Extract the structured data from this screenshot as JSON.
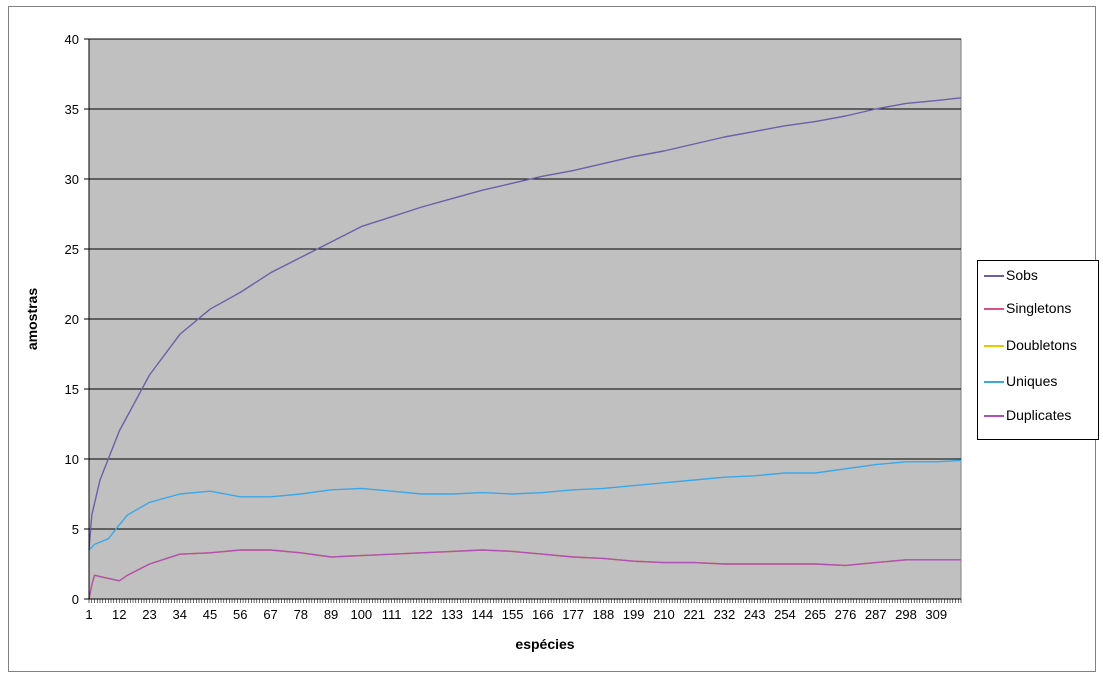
{
  "chart_data": {
    "type": "line",
    "title": "",
    "xlabel": "espécies",
    "ylabel": "amostras",
    "ylim": [
      0,
      40
    ],
    "yticks": [
      "0",
      "5",
      "10",
      "15",
      "20",
      "25",
      "30",
      "35",
      "40"
    ],
    "xlim": [
      1,
      318
    ],
    "xtick_labels": [
      "1",
      "12",
      "23",
      "34",
      "45",
      "56",
      "67",
      "78",
      "89",
      "100",
      "111",
      "122",
      "133",
      "144",
      "155",
      "166",
      "177",
      "188",
      "199",
      "210",
      "221",
      "232",
      "243",
      "254",
      "265",
      "276",
      "287",
      "298",
      "309"
    ],
    "legend_position": "right",
    "grid": "horizontal",
    "series": [
      {
        "name": "Sobs",
        "color": "#6b5fa8",
        "x": [
          1,
          2,
          5,
          12,
          23,
          34,
          45,
          56,
          67,
          78,
          89,
          100,
          111,
          122,
          133,
          144,
          155,
          166,
          177,
          188,
          199,
          210,
          221,
          232,
          243,
          254,
          265,
          276,
          287,
          298,
          309,
          318
        ],
        "y": [
          3.5,
          6,
          8.5,
          12,
          16,
          18.9,
          20.7,
          21.9,
          23.3,
          24.4,
          25.5,
          26.6,
          27.3,
          28,
          28.6,
          29.2,
          29.7,
          30.2,
          30.6,
          31.1,
          31.6,
          32,
          32.5,
          33,
          33.4,
          33.8,
          34.1,
          34.5,
          35,
          35.4,
          35.6,
          35.8
        ]
      },
      {
        "name": "Singletons",
        "color": "#d94f8a",
        "x": [
          1,
          2,
          3,
          5,
          12,
          15,
          23,
          34,
          45,
          56,
          67,
          78,
          89,
          100,
          111,
          122,
          133,
          144,
          155,
          166,
          177,
          188,
          199,
          210,
          221,
          232,
          243,
          254,
          265,
          276,
          287,
          298,
          309,
          318
        ],
        "y": [
          0,
          1,
          1.7,
          1.6,
          1.3,
          1.7,
          2.5,
          3.2,
          3.3,
          3.5,
          3.5,
          3.3,
          3,
          3.1,
          3.2,
          3.3,
          3.4,
          3.5,
          3.4,
          3.2,
          3,
          2.9,
          2.7,
          2.6,
          2.6,
          2.5,
          2.5,
          2.5,
          2.5,
          2.4,
          2.6,
          2.8,
          2.8,
          2.8
        ]
      },
      {
        "name": "Doubletons",
        "color": "#e8c800",
        "x": [
          1,
          2,
          3,
          5,
          12,
          15,
          23,
          34,
          45,
          56,
          67,
          78,
          89,
          100,
          111,
          122,
          133,
          144,
          155,
          166,
          177,
          188,
          199,
          210,
          221,
          232,
          243,
          254,
          265,
          276,
          287,
          298,
          309,
          318
        ],
        "y": [
          0,
          1,
          1.7,
          1.6,
          1.3,
          1.7,
          2.5,
          3.2,
          3.3,
          3.5,
          3.5,
          3.3,
          3,
          3.1,
          3.2,
          3.3,
          3.4,
          3.5,
          3.4,
          3.2,
          3,
          2.9,
          2.7,
          2.6,
          2.6,
          2.5,
          2.5,
          2.5,
          2.5,
          2.4,
          2.6,
          2.8,
          2.8,
          2.8
        ]
      },
      {
        "name": "Uniques",
        "color": "#3aa8e8",
        "x": [
          1,
          3,
          8,
          12,
          15,
          23,
          34,
          45,
          56,
          67,
          78,
          89,
          100,
          111,
          122,
          133,
          144,
          155,
          166,
          177,
          188,
          199,
          210,
          221,
          232,
          243,
          254,
          265,
          276,
          287,
          298,
          309,
          318
        ],
        "y": [
          3.5,
          3.9,
          4.3,
          5.3,
          6,
          6.9,
          7.5,
          7.7,
          7.3,
          7.3,
          7.5,
          7.8,
          7.9,
          7.7,
          7.5,
          7.5,
          7.6,
          7.5,
          7.6,
          7.8,
          7.9,
          8.1,
          8.3,
          8.5,
          8.7,
          8.8,
          9,
          9,
          9.3,
          9.6,
          9.8,
          9.8,
          9.9
        ]
      },
      {
        "name": "Duplicates",
        "color": "#b04fb8",
        "x": [
          1,
          2,
          3,
          5,
          12,
          15,
          23,
          34,
          45,
          56,
          67,
          78,
          89,
          100,
          111,
          122,
          133,
          144,
          155,
          166,
          177,
          188,
          199,
          210,
          221,
          232,
          243,
          254,
          265,
          276,
          287,
          298,
          309,
          318
        ],
        "y": [
          0,
          1,
          1.7,
          1.6,
          1.3,
          1.7,
          2.5,
          3.2,
          3.3,
          3.5,
          3.5,
          3.3,
          3,
          3.1,
          3.2,
          3.3,
          3.4,
          3.5,
          3.4,
          3.2,
          3,
          2.9,
          2.7,
          2.6,
          2.6,
          2.5,
          2.5,
          2.5,
          2.5,
          2.4,
          2.6,
          2.8,
          2.8,
          2.8
        ]
      }
    ]
  },
  "legend": {
    "items": [
      {
        "label": "Sobs"
      },
      {
        "label": "Singletons"
      },
      {
        "label": "Doubletons"
      },
      {
        "label": "Uniques"
      },
      {
        "label": "Duplicates"
      }
    ]
  }
}
